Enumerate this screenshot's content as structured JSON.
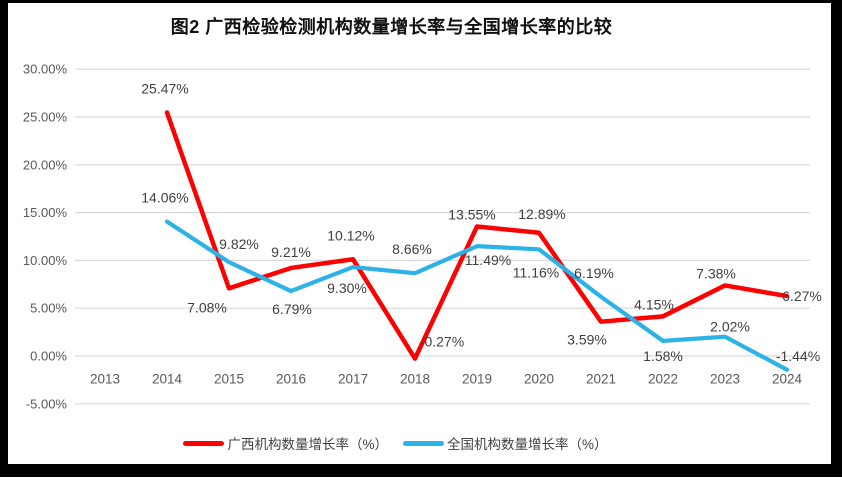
{
  "title": "图2 广西检验检测机构数量增长率与全国增长率的比较",
  "chart_data": {
    "type": "line",
    "title": "图2 广西检验检测机构数量增长率与全国增长率的比较",
    "categories": [
      "2013",
      "2014",
      "2015",
      "2016",
      "2017",
      "2018",
      "2019",
      "2020",
      "2021",
      "2022",
      "2023",
      "2024"
    ],
    "series": [
      {
        "name": "广西机构数量增长率（%）",
        "color": "#FF0000",
        "values": [
          null,
          25.47,
          7.08,
          9.21,
          10.12,
          -0.27,
          13.55,
          12.89,
          3.59,
          4.15,
          7.38,
          6.27
        ],
        "point_labels": [
          null,
          "25.47%",
          "7.08%",
          "9.21%",
          "10.12%",
          "-0.27%",
          "13.55%",
          "12.89%",
          "3.59%",
          "4.15%",
          "7.38%",
          "6.27%"
        ]
      },
      {
        "name": "全国机构数量增长率（%）",
        "color": "#2DB2E8",
        "values": [
          null,
          14.06,
          9.82,
          6.79,
          9.3,
          8.66,
          11.49,
          11.16,
          6.19,
          1.58,
          2.02,
          -1.44
        ],
        "point_labels": [
          null,
          "14.06%",
          "9.82%",
          "6.79%",
          "9.30%",
          "8.66%",
          "11.49%",
          "11.16%",
          "6.19%",
          "1.58%",
          "2.02%",
          "-1.44%"
        ]
      }
    ],
    "y_axis": {
      "min": -5,
      "max": 30,
      "step": 5,
      "tick_values": [
        30,
        25,
        20,
        15,
        10,
        5,
        0,
        -5
      ],
      "tick_labels": [
        "30.00%",
        "25.00%",
        "20.00%",
        "15.00%",
        "10.00%",
        "5.00%",
        "0.00%",
        "-5.00%"
      ]
    },
    "grid": "horizontal",
    "legend_position": "bottom"
  },
  "colors": {
    "frame": "#000000",
    "background": "#FFFFFF",
    "gridline": "#D9D9D9",
    "tick_text": "#595959",
    "data_label_text": "#404040",
    "title_text": "#111111"
  }
}
